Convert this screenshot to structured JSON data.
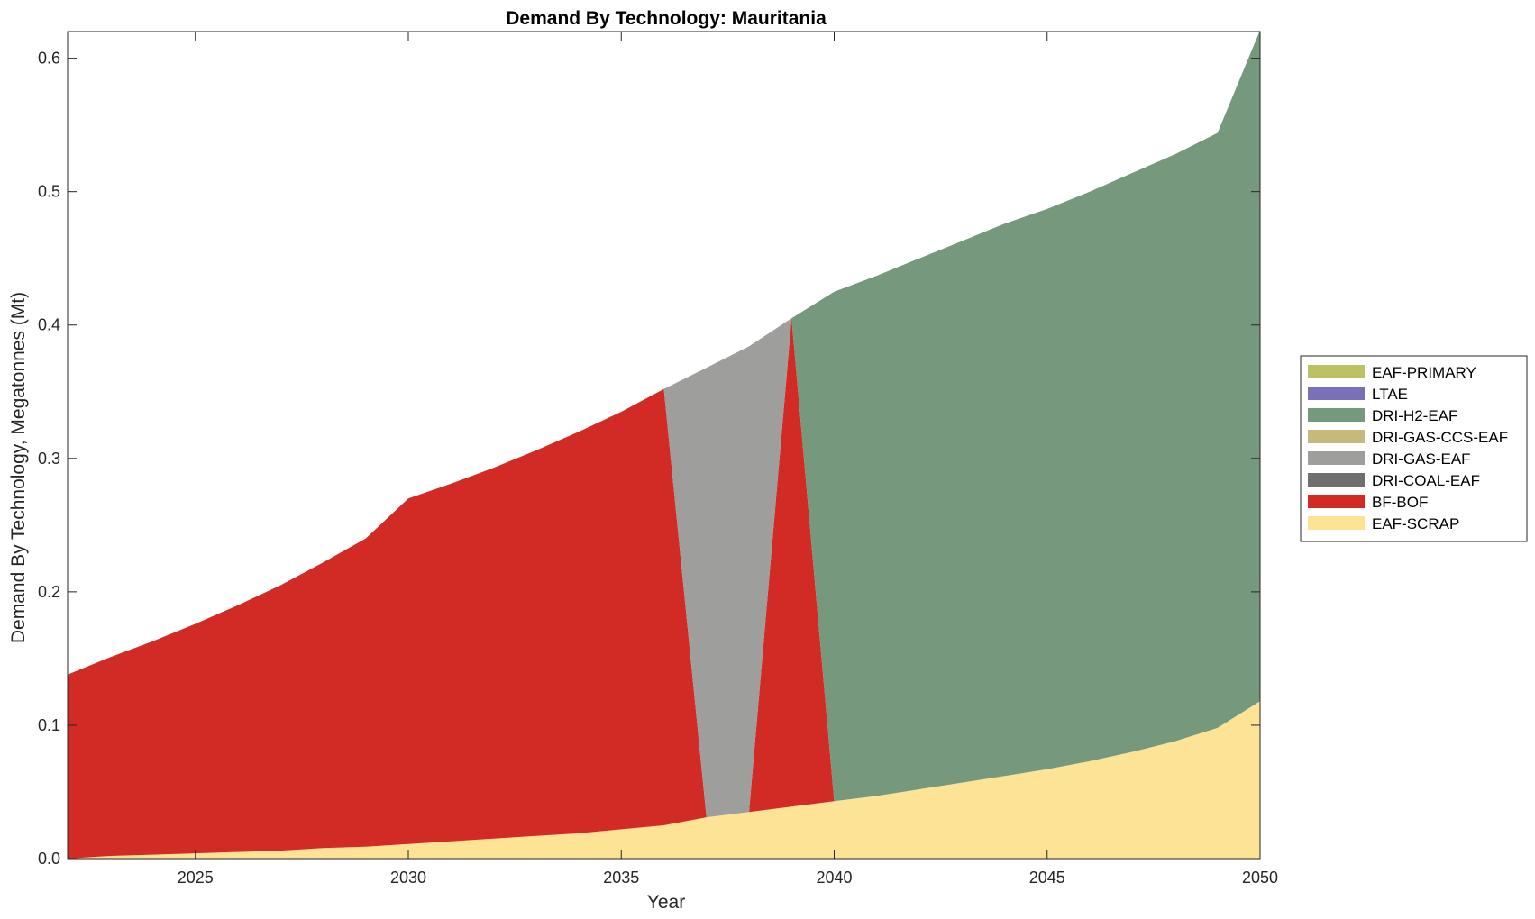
{
  "chart_data": {
    "type": "area",
    "stacked": true,
    "title": "Demand By Technology: Mauritania",
    "xlabel": "Year",
    "ylabel": "Demand By Technology, Megatonnes (Mt)",
    "xlim": [
      2022,
      2050
    ],
    "ylim": [
      0,
      0.62
    ],
    "xticks": [
      2025,
      2030,
      2035,
      2040,
      2045,
      2050
    ],
    "yticks": [
      0.0,
      0.1,
      0.2,
      0.3,
      0.4,
      0.5,
      0.6
    ],
    "ytick_labels": [
      "0.0",
      "0.1",
      "0.2",
      "0.3",
      "0.4",
      "0.5",
      "0.6"
    ],
    "grid": false,
    "legend_position": "right",
    "x": [
      2022,
      2023,
      2024,
      2025,
      2026,
      2027,
      2028,
      2029,
      2030,
      2031,
      2032,
      2033,
      2034,
      2035,
      2036,
      2037,
      2038,
      2039,
      2040,
      2041,
      2042,
      2043,
      2044,
      2045,
      2046,
      2047,
      2048,
      2049,
      2050
    ],
    "series": [
      {
        "name": "EAF-SCRAP",
        "color": "#fde396",
        "values": [
          0.0,
          0.002,
          0.003,
          0.004,
          0.005,
          0.006,
          0.008,
          0.009,
          0.011,
          0.013,
          0.015,
          0.017,
          0.019,
          0.022,
          0.025,
          0.031,
          0.035,
          0.039,
          0.043,
          0.047,
          0.052,
          0.057,
          0.062,
          0.067,
          0.073,
          0.08,
          0.088,
          0.098,
          0.118
        ]
      },
      {
        "name": "BF-BOF",
        "color": "#d22b25",
        "values": [
          0.138,
          0.149,
          0.16,
          0.172,
          0.185,
          0.199,
          0.214,
          0.231,
          0.259,
          0.268,
          0.278,
          0.289,
          0.301,
          0.313,
          0.327,
          0.0,
          0.0,
          0.366,
          0.0,
          0.0,
          0.0,
          0.0,
          0.0,
          0.0,
          0.0,
          0.0,
          0.0,
          0.0,
          0.0
        ]
      },
      {
        "name": "DRI-COAL-EAF",
        "color": "#6f6f6f",
        "values": [
          0,
          0,
          0,
          0,
          0,
          0,
          0,
          0,
          0,
          0,
          0,
          0,
          0,
          0,
          0,
          0,
          0,
          0,
          0,
          0,
          0,
          0,
          0,
          0,
          0,
          0,
          0,
          0,
          0
        ]
      },
      {
        "name": "DRI-GAS-EAF",
        "color": "#9e9e9c",
        "values": [
          0,
          0,
          0,
          0,
          0,
          0,
          0,
          0,
          0,
          0,
          0,
          0,
          0,
          0,
          0,
          0.337,
          0.349,
          0.0,
          0,
          0,
          0,
          0,
          0,
          0,
          0,
          0,
          0,
          0,
          0
        ]
      },
      {
        "name": "DRI-GAS-CCS-EAF",
        "color": "#c5b97c",
        "values": [
          0,
          0,
          0,
          0,
          0,
          0,
          0,
          0,
          0,
          0,
          0,
          0,
          0,
          0,
          0,
          0,
          0,
          0,
          0,
          0,
          0,
          0,
          0,
          0,
          0,
          0,
          0,
          0,
          0
        ]
      },
      {
        "name": "DRI-H2-EAF",
        "color": "#76987c",
        "values": [
          0,
          0,
          0,
          0,
          0,
          0,
          0,
          0,
          0,
          0,
          0,
          0,
          0,
          0,
          0,
          0,
          0,
          0,
          0.382,
          0.39,
          0.398,
          0.406,
          0.414,
          0.42,
          0.427,
          0.434,
          0.44,
          0.446,
          0.503
        ]
      },
      {
        "name": "LTAE",
        "color": "#7870b8",
        "values": [
          0,
          0,
          0,
          0,
          0,
          0,
          0,
          0,
          0,
          0,
          0,
          0,
          0,
          0,
          0,
          0,
          0,
          0,
          0,
          0,
          0,
          0,
          0,
          0,
          0,
          0,
          0,
          0,
          0
        ]
      },
      {
        "name": "EAF-PRIMARY",
        "color": "#bcc263",
        "values": [
          0,
          0,
          0,
          0,
          0,
          0,
          0,
          0,
          0,
          0,
          0,
          0,
          0,
          0,
          0,
          0,
          0,
          0,
          0,
          0,
          0,
          0,
          0,
          0,
          0,
          0,
          0,
          0,
          0
        ]
      }
    ],
    "legend_order": [
      "EAF-PRIMARY",
      "LTAE",
      "DRI-H2-EAF",
      "DRI-GAS-CCS-EAF",
      "DRI-GAS-EAF",
      "DRI-COAL-EAF",
      "BF-BOF",
      "EAF-SCRAP"
    ]
  }
}
